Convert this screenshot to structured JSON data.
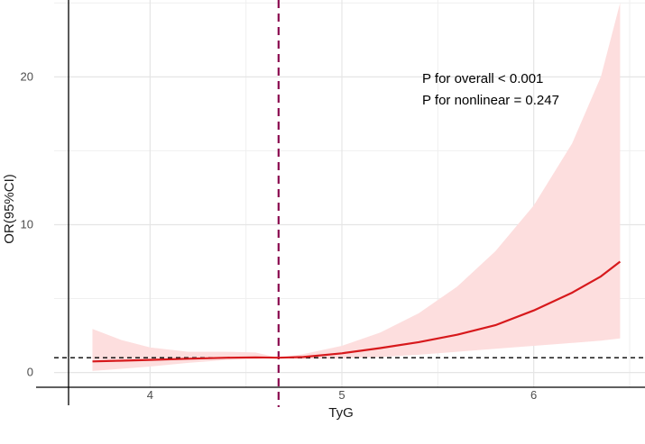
{
  "chart_data": {
    "type": "line",
    "title": "",
    "xlabel": "TyG",
    "ylabel": "OR(95%CI)",
    "xlim": [
      3.5,
      6.58
    ],
    "ylim": [
      -1.0,
      25.2
    ],
    "x_ticks": [
      4,
      5,
      6
    ],
    "y_ticks": [
      0,
      10,
      20
    ],
    "grid": true,
    "reference_line_y": 1,
    "reference_line_x": 4.67,
    "annotations": [
      "P for overall < 0.001",
      "P for nonlinear = 0.247"
    ],
    "colors": {
      "curve": "#d7191c",
      "band": "#fddede",
      "vline": "#8b0a50",
      "hline": "#000000",
      "grid": "#e5e5e5"
    },
    "series": [
      {
        "x": [
          3.7,
          3.85,
          4.0,
          4.2,
          4.4,
          4.55,
          4.67,
          4.8,
          5.0,
          5.2,
          5.4,
          5.6,
          5.8,
          6.0,
          6.2,
          6.35,
          6.45
        ],
        "y": [
          0.75,
          0.8,
          0.85,
          0.93,
          1.0,
          1.02,
          1.0,
          1.05,
          1.3,
          1.65,
          2.05,
          2.55,
          3.2,
          4.2,
          5.4,
          6.5,
          7.5
        ],
        "lower": [
          0.1,
          0.25,
          0.4,
          0.65,
          0.85,
          0.9,
          1.0,
          0.9,
          0.95,
          1.05,
          1.2,
          1.4,
          1.6,
          1.8,
          2.0,
          2.15,
          2.3
        ],
        "upper": [
          2.95,
          2.2,
          1.7,
          1.4,
          1.4,
          1.35,
          1.0,
          1.25,
          1.8,
          2.7,
          4.0,
          5.8,
          8.2,
          11.3,
          15.5,
          20.0,
          25.0
        ]
      }
    ]
  }
}
